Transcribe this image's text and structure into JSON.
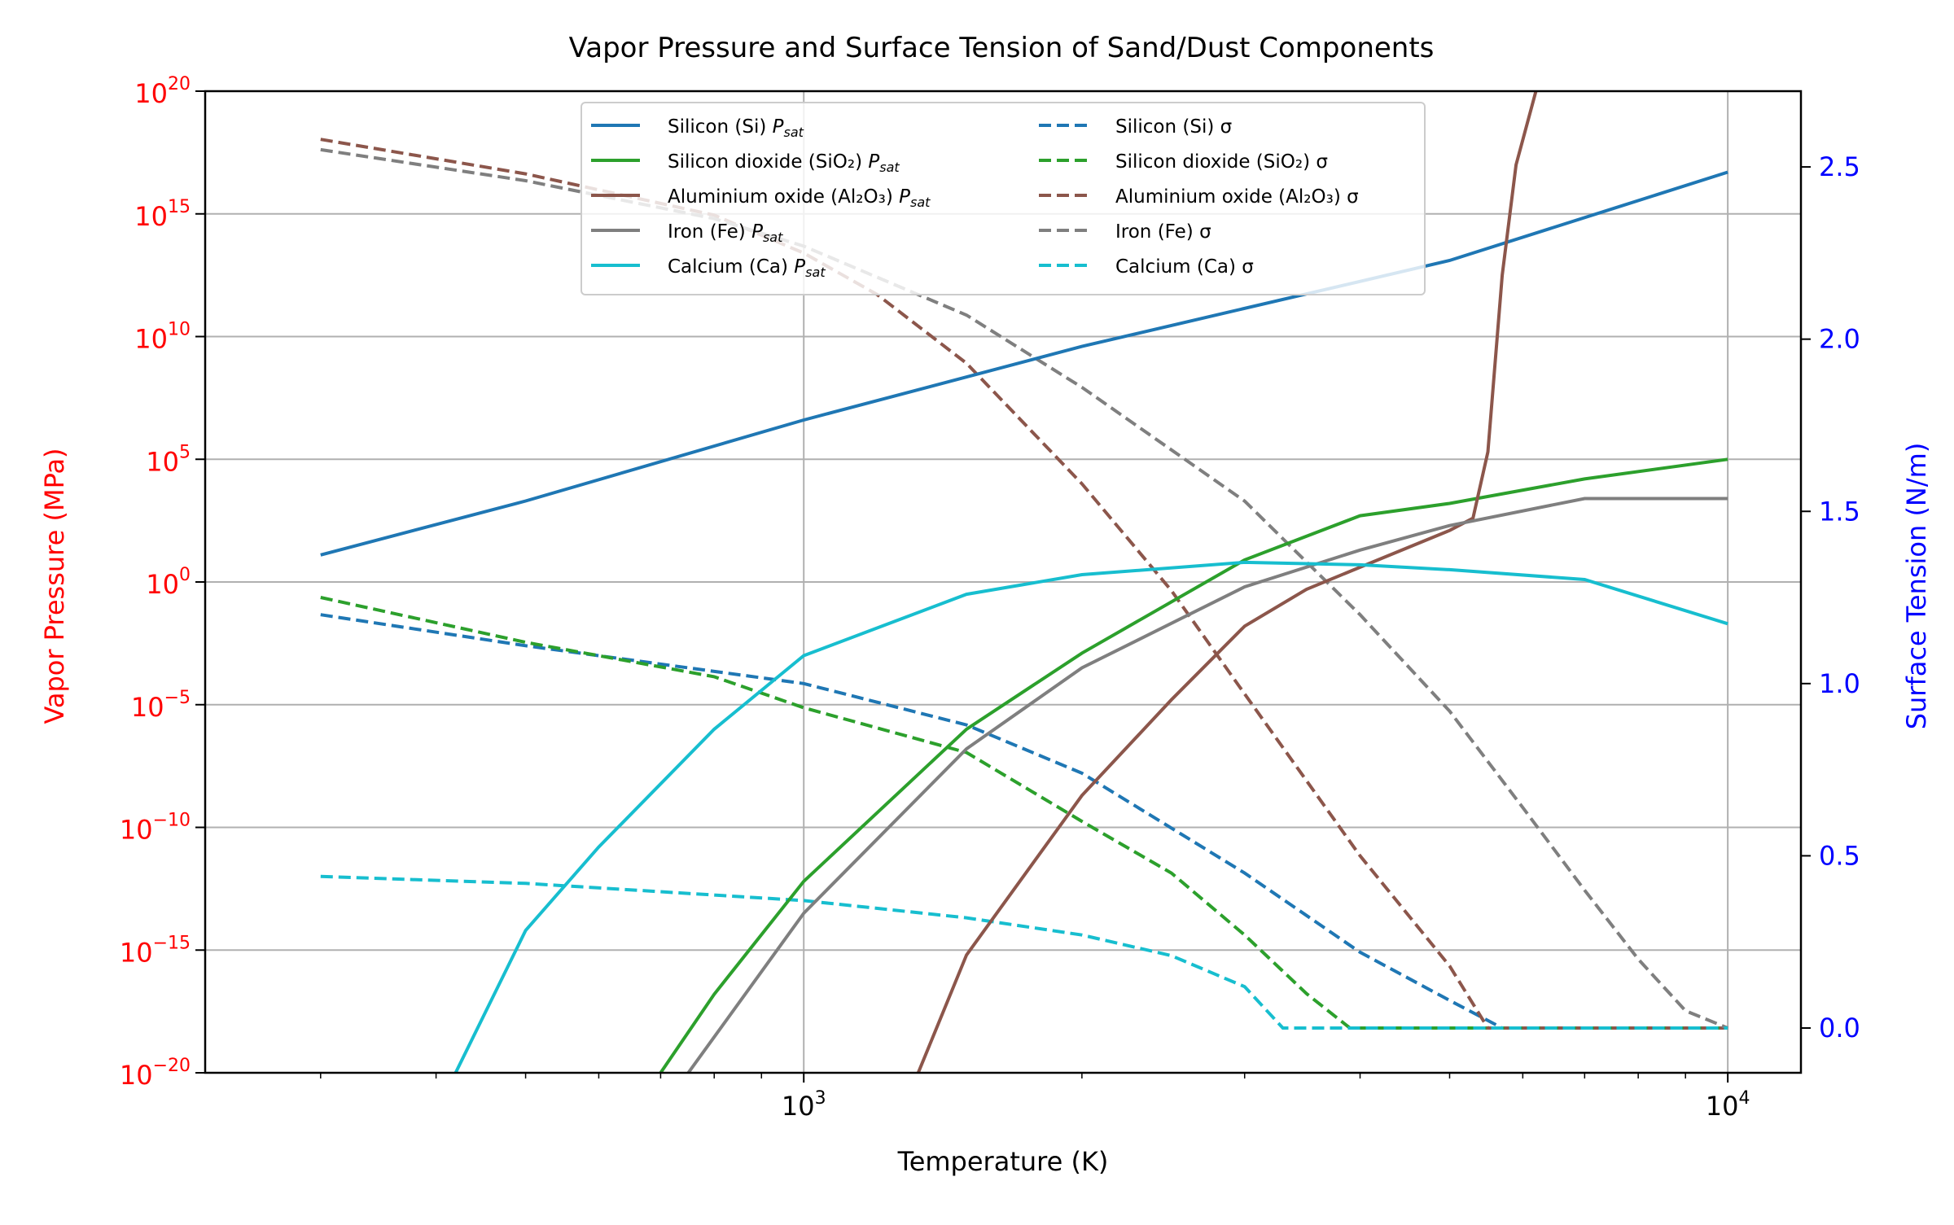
{
  "chart_data": {
    "type": "line",
    "title": "Vapor Pressure and Surface Tension of Sand/Dust Components",
    "xlabel": "Temperature (K)",
    "ylabel_left": "Vapor Pressure (MPa)",
    "ylabel_right": "Surface Tension (N/m)",
    "x_scale": "log",
    "x_range": [
      225,
      12000
    ],
    "y_left_scale": "log",
    "y_left_range_exponent": [
      -20,
      20
    ],
    "y_right_range": [
      -0.13,
      2.72
    ],
    "grid": true,
    "legend_position": "upper-center",
    "colors": {
      "title": "#000000",
      "left_axis": "#ff0000",
      "right_axis": "#0000ff",
      "grid": "#b0b0b0"
    },
    "x_ticks": [
      {
        "value": 1000,
        "label": "10",
        "exp": "3"
      },
      {
        "value": 10000,
        "label": "10",
        "exp": "4"
      }
    ],
    "y_left_ticks": [
      {
        "value": 20,
        "label": "10",
        "exp": "20"
      },
      {
        "value": 15,
        "label": "10",
        "exp": "15"
      },
      {
        "value": 10,
        "label": "10",
        "exp": "10"
      },
      {
        "value": 5,
        "label": "10",
        "exp": "5"
      },
      {
        "value": 0,
        "label": "10",
        "exp": "0"
      },
      {
        "value": -5,
        "label": "10",
        "exp": "−5"
      },
      {
        "value": -10,
        "label": "10",
        "exp": "−10"
      },
      {
        "value": -15,
        "label": "10",
        "exp": "−15"
      },
      {
        "value": -20,
        "label": "10",
        "exp": "−20"
      }
    ],
    "y_right_ticks": [
      {
        "value": 0.0,
        "label": "0.0"
      },
      {
        "value": 0.5,
        "label": "0.5"
      },
      {
        "value": 1.0,
        "label": "1.0"
      },
      {
        "value": 1.5,
        "label": "1.5"
      },
      {
        "value": 2.0,
        "label": "2.0"
      },
      {
        "value": 2.5,
        "label": "2.5"
      }
    ],
    "series": [
      {
        "name": "Silicon (Si)",
        "legend_suffix": "P",
        "legend_sub": "sat",
        "color": "#1f77b4",
        "axis": "left",
        "style": "solid",
        "x": [
          300,
          500,
          1000,
          2000,
          5000,
          10000
        ],
        "y_log10": [
          1.1,
          3.3,
          6.6,
          9.6,
          13.1,
          16.7
        ]
      },
      {
        "name": "Silicon dioxide (SiO₂)",
        "legend_suffix": "P",
        "legend_sub": "sat",
        "color": "#2ca02c",
        "axis": "left",
        "style": "solid",
        "x": [
          700,
          800,
          1000,
          1500,
          2000,
          3000,
          4000,
          5000,
          7000,
          10000
        ],
        "y_log10": [
          -20,
          -16.8,
          -12.2,
          -6.0,
          -2.9,
          0.9,
          2.7,
          3.2,
          4.2,
          5.0
        ]
      },
      {
        "name": "Aluminium oxide (Al₂O₃)",
        "legend_suffix": "P",
        "legend_sub": "sat",
        "color": "#8c564b",
        "axis": "left",
        "style": "solid",
        "x": [
          1330,
          1500,
          2000,
          2500,
          3000,
          3500,
          4000,
          5000,
          5300,
          5500,
          5700,
          5900,
          6200
        ],
        "y_log10": [
          -20,
          -15.2,
          -8.7,
          -4.8,
          -1.8,
          -0.3,
          0.6,
          2.1,
          2.6,
          5.3,
          12.5,
          17.0,
          20
        ]
      },
      {
        "name": "Iron (Fe)",
        "legend_suffix": "P",
        "legend_sub": "sat",
        "color": "#7f7f7f",
        "axis": "left",
        "style": "solid",
        "x": [
          750,
          1000,
          1500,
          2000,
          3000,
          4000,
          5000,
          7000,
          10000
        ],
        "y_log10": [
          -20,
          -13.5,
          -6.8,
          -3.5,
          -0.2,
          1.3,
          2.3,
          3.4,
          3.4
        ]
      },
      {
        "name": "Calcium (Ca)",
        "legend_suffix": "P",
        "legend_sub": "sat",
        "color": "#17becf",
        "axis": "left",
        "style": "solid",
        "x": [
          420,
          500,
          600,
          800,
          1000,
          1500,
          2000,
          3000,
          4000,
          5000,
          7000,
          10000
        ],
        "y_log10": [
          -20,
          -14.2,
          -10.8,
          -6.0,
          -3.0,
          -0.5,
          0.3,
          0.8,
          0.7,
          0.5,
          0.1,
          -1.7
        ]
      },
      {
        "name": "Silicon (Si) σ",
        "color": "#1f77b4",
        "axis": "right",
        "style": "dashed",
        "x": [
          300,
          500,
          1000,
          1500,
          2000,
          3000,
          4000,
          5000,
          5700,
          6200,
          10000
        ],
        "y": [
          1.2,
          1.11,
          1.0,
          0.88,
          0.74,
          0.45,
          0.22,
          0.08,
          0.0,
          0.0,
          0.0
        ]
      },
      {
        "name": "Silicon dioxide (SiO₂) σ",
        "color": "#2ca02c",
        "axis": "right",
        "style": "dashed",
        "x": [
          300,
          500,
          800,
          1000,
          1500,
          2000,
          2500,
          3000,
          3500,
          3900,
          10000
        ],
        "y": [
          1.25,
          1.12,
          1.02,
          0.93,
          0.8,
          0.6,
          0.45,
          0.27,
          0.1,
          0.0,
          0.0
        ]
      },
      {
        "name": "Aluminium oxide (Al₂O₃) σ",
        "color": "#8c564b",
        "axis": "right",
        "style": "dashed",
        "x": [
          300,
          500,
          800,
          1000,
          1200,
          1500,
          2000,
          2500,
          3000,
          4000,
          5000,
          5500,
          10000
        ],
        "y": [
          2.58,
          2.48,
          2.36,
          2.25,
          2.13,
          1.93,
          1.58,
          1.27,
          0.97,
          0.5,
          0.18,
          0.0,
          0.0
        ]
      },
      {
        "name": "Iron (Fe) σ",
        "color": "#7f7f7f",
        "axis": "right",
        "style": "dashed",
        "x": [
          300,
          500,
          800,
          1000,
          1500,
          2000,
          3000,
          4000,
          5000,
          6000,
          7000,
          8000,
          9000,
          10000
        ],
        "y": [
          2.55,
          2.46,
          2.35,
          2.27,
          2.07,
          1.86,
          1.53,
          1.2,
          0.92,
          0.64,
          0.4,
          0.2,
          0.05,
          0.0
        ]
      },
      {
        "name": "Calcium (Ca) σ",
        "color": "#17becf",
        "axis": "right",
        "style": "dashed",
        "x": [
          300,
          500,
          1000,
          1500,
          2000,
          2500,
          3000,
          3300,
          10000
        ],
        "y": [
          0.44,
          0.42,
          0.37,
          0.32,
          0.27,
          0.21,
          0.12,
          0.0,
          0.0
        ]
      }
    ]
  }
}
